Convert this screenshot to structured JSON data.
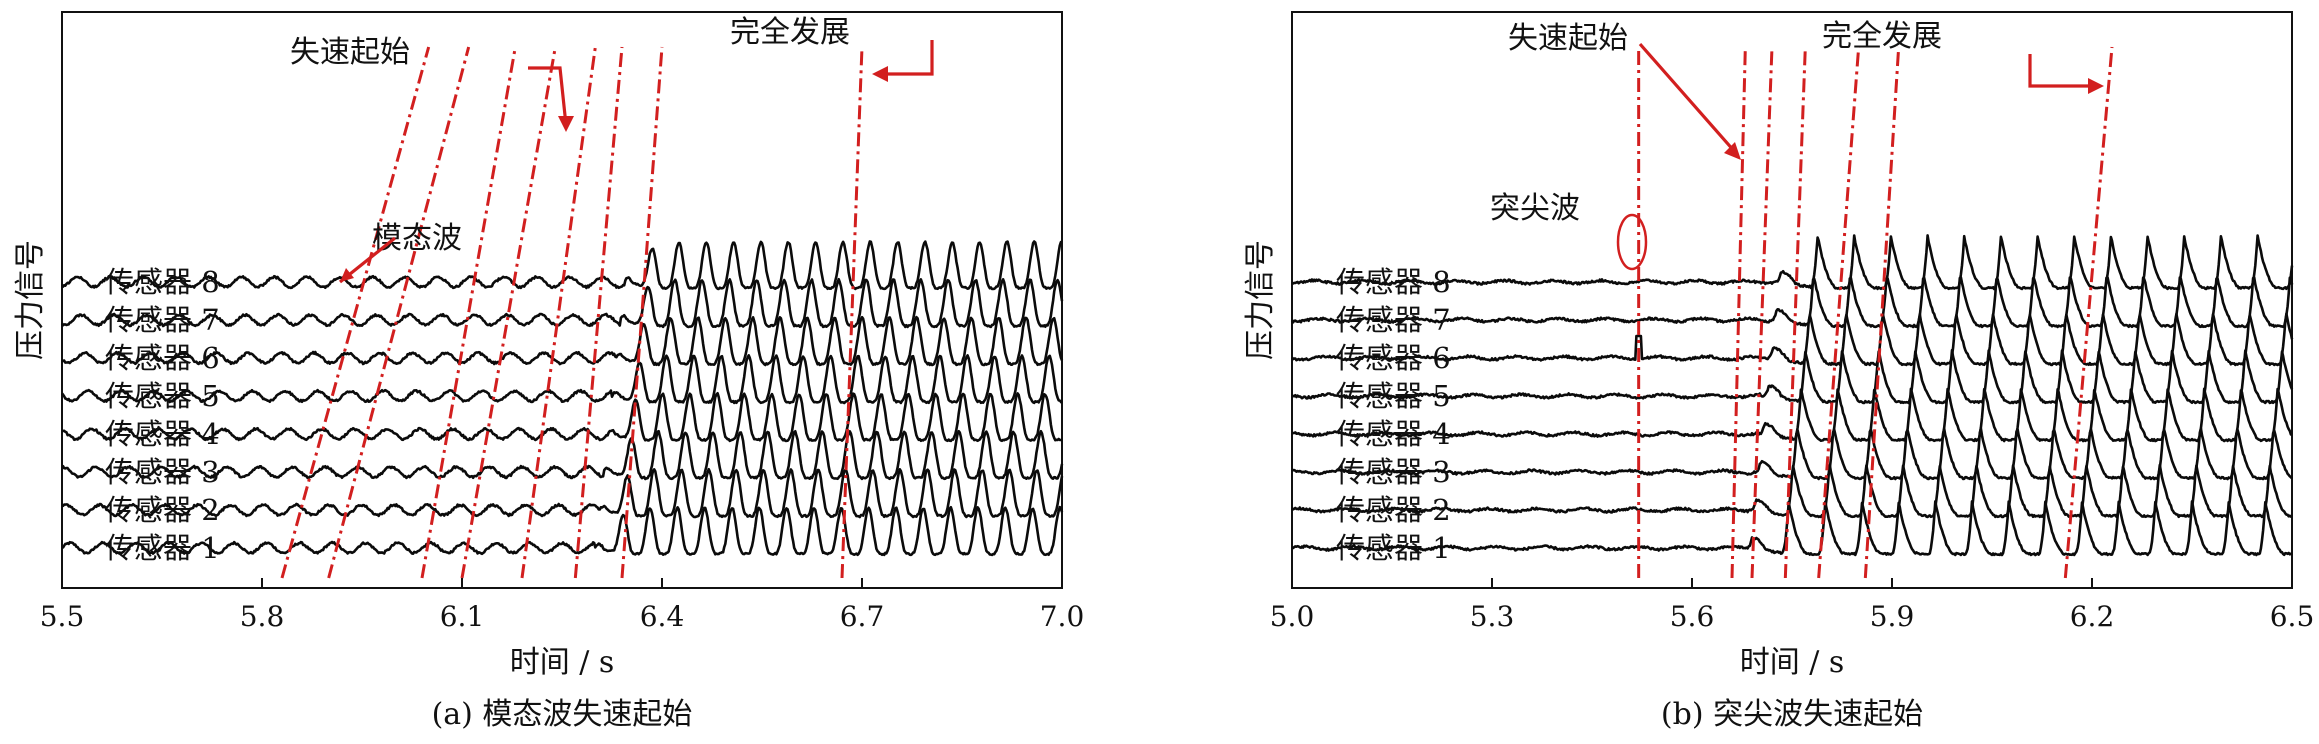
{
  "chart_data": [
    {
      "type": "line",
      "caption": "(a) 模态波失速起始",
      "xlabel": "时间 / s",
      "ylabel": "压力信号",
      "xlim": [
        5.5,
        7.0
      ],
      "xticks": [
        5.5,
        5.8,
        6.1,
        6.4,
        6.7,
        7.0
      ],
      "xtick_labels": [
        "5.5",
        "5.8",
        "6.1",
        "6.4",
        "6.7",
        "7.0"
      ],
      "series": [
        {
          "name": "传感器 1"
        },
        {
          "name": "传感器 2"
        },
        {
          "name": "传感器 3"
        },
        {
          "name": "传感器 4"
        },
        {
          "name": "传感器 5"
        },
        {
          "name": "传感器 6"
        },
        {
          "name": "传感器 7"
        },
        {
          "name": "传感器 8"
        }
      ],
      "waveform": {
        "onset_time": 6.3,
        "period": 0.041,
        "pre_amplitude": 0.12,
        "post_amplitude": 1.0,
        "sensor_offset": 0.0062
      },
      "annotations": [
        {
          "text": "失速起始",
          "x": 5.93
        },
        {
          "text": "模态波",
          "x": 6.0
        },
        {
          "text": "完全发展",
          "x": 6.6
        }
      ],
      "red_lines": [
        {
          "x_top": 6.05,
          "x_bottom": 5.83
        },
        {
          "x_top": 6.11,
          "x_bottom": 5.9
        },
        {
          "x_top": 6.18,
          "x_bottom": 6.04
        },
        {
          "x_top": 6.24,
          "x_bottom": 6.1
        },
        {
          "x_top": 6.3,
          "x_bottom": 6.19
        },
        {
          "x_top": 6.34,
          "x_bottom": 6.27
        },
        {
          "x_top": 6.4,
          "x_bottom": 6.34
        },
        {
          "x_top": 6.7,
          "x_bottom": 6.67
        }
      ]
    },
    {
      "type": "line",
      "caption": "(b) 突尖波失速起始",
      "xlabel": "时间 / s",
      "ylabel": "压力信号",
      "xlim": [
        5.0,
        6.5
      ],
      "xticks": [
        5.0,
        5.3,
        5.6,
        5.9,
        6.2,
        6.5
      ],
      "xtick_labels": [
        "5.0",
        "5.3",
        "5.6",
        "5.9",
        "6.2",
        "6.5"
      ],
      "series": [
        {
          "name": "传感器 1"
        },
        {
          "name": "传感器 2"
        },
        {
          "name": "传感器 3"
        },
        {
          "name": "传感器 4"
        },
        {
          "name": "传感器 5"
        },
        {
          "name": "传感器 6"
        },
        {
          "name": "传感器 7"
        },
        {
          "name": "传感器 8"
        }
      ],
      "waveform": {
        "onset_time": 5.68,
        "period": 0.055,
        "pre_amplitude": 0.02,
        "post_amplitude": 1.15,
        "sensor_offset": 0.0062,
        "spike_time": 5.52,
        "spike_sensor": 6
      },
      "annotations": [
        {
          "text": "失速起始",
          "x": 5.58
        },
        {
          "text": "突尖波",
          "x": 5.5
        },
        {
          "text": "完全发展",
          "x": 5.95
        }
      ],
      "red_lines": [
        {
          "x_top": 5.52,
          "x_bottom": 5.52
        },
        {
          "x_top": 5.68,
          "x_bottom": 5.66
        },
        {
          "x_top": 5.72,
          "x_bottom": 5.69
        },
        {
          "x_top": 5.77,
          "x_bottom": 5.74
        },
        {
          "x_top": 5.85,
          "x_bottom": 5.79
        },
        {
          "x_top": 5.91,
          "x_bottom": 5.86
        },
        {
          "x_top": 6.23,
          "x_bottom": 6.16
        }
      ]
    }
  ]
}
